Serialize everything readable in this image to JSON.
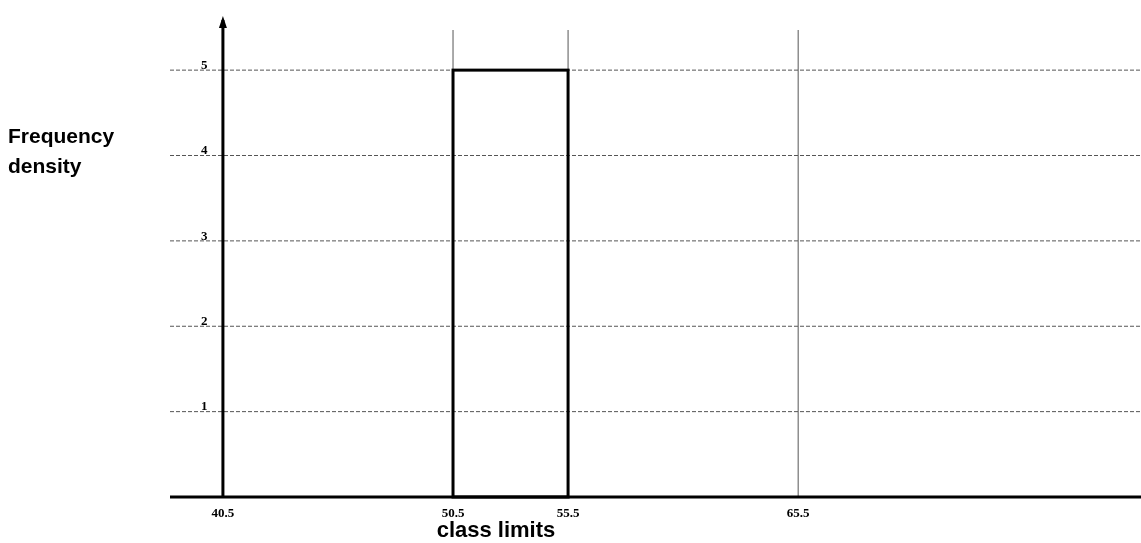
{
  "chart_data": {
    "type": "histogram",
    "xlabel": "class limits",
    "ylabel": "Frequency density",
    "bins": [
      50.5,
      55.5
    ],
    "values": [
      5
    ],
    "color": "#000000",
    "xlim": [
      38.2,
      80.4
    ],
    "xticks": [
      40.5,
      50.5,
      55.5,
      65.5
    ],
    "ylim": [
      0,
      5.47
    ],
    "yticks": [
      1,
      2,
      3,
      4,
      5
    ],
    "grid": true
  }
}
